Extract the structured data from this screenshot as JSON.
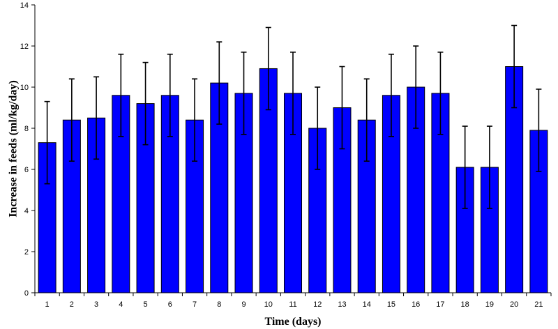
{
  "chart_data": {
    "type": "bar",
    "title": "",
    "xlabel": "Time (days)",
    "ylabel": "Increase in feeds (ml/kg/day)",
    "categories": [
      "1",
      "2",
      "3",
      "4",
      "5",
      "6",
      "7",
      "8",
      "9",
      "10",
      "11",
      "12",
      "13",
      "14",
      "15",
      "16",
      "17",
      "18",
      "19",
      "20",
      "21"
    ],
    "values": [
      7.3,
      8.4,
      8.5,
      9.6,
      9.2,
      9.6,
      8.4,
      10.2,
      9.7,
      10.9,
      9.7,
      8.0,
      9.0,
      8.4,
      9.6,
      10.0,
      9.7,
      6.1,
      6.1,
      11.0,
      7.9
    ],
    "error": [
      2.0,
      2.0,
      2.0,
      2.0,
      2.0,
      2.0,
      2.0,
      2.0,
      2.0,
      2.0,
      2.0,
      2.0,
      2.0,
      2.0,
      2.0,
      2.0,
      2.0,
      2.0,
      2.0,
      2.0,
      2.0
    ],
    "ylim": [
      0,
      14
    ],
    "yticks": [
      "0",
      "2",
      "4",
      "6",
      "8",
      "10",
      "12",
      "14"
    ],
    "grid": false,
    "legend": "none",
    "bar_color": "#0000FF",
    "edge_color": "#000000"
  }
}
